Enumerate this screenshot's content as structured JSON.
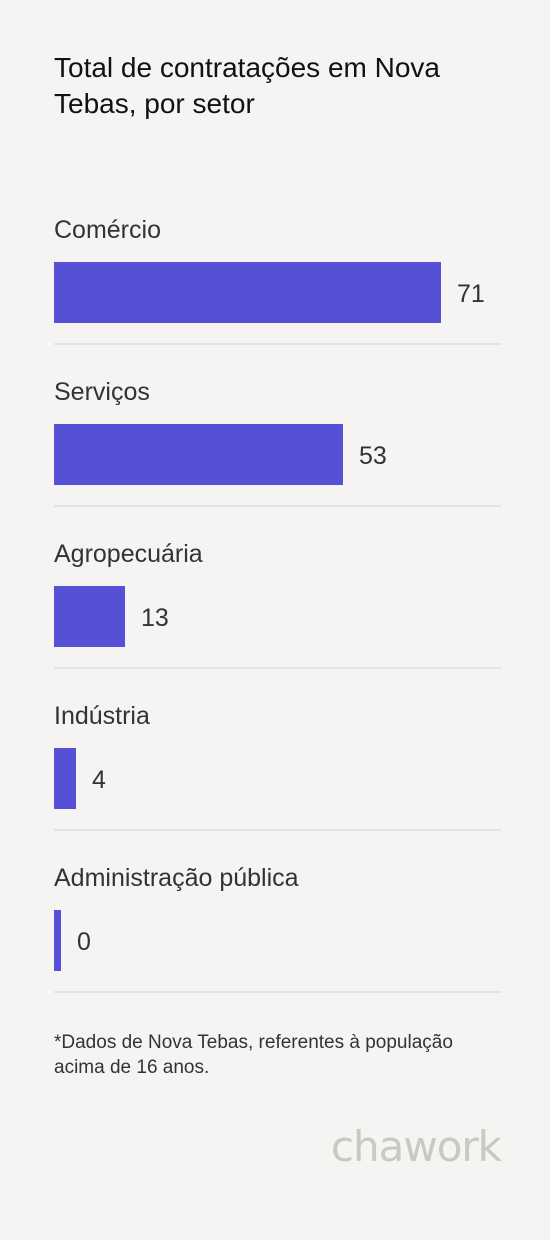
{
  "title": "Total de contratações em Nova Tebas, por setor",
  "chart_data": {
    "type": "bar",
    "orientation": "horizontal",
    "categories": [
      "Comércio",
      "Serviços",
      "Agropecuária",
      "Indústria",
      "Administração pública"
    ],
    "values": [
      71,
      53,
      13,
      4,
      0
    ],
    "title": "Total de contratações em Nova Tebas, por setor",
    "xlabel": "",
    "ylabel": "",
    "bar_color": "#5650d6",
    "xlim": [
      0,
      82
    ],
    "grid": false,
    "data_labels": true
  },
  "footnote": "*Dados de Nova Tebas, referentes à população acima de 16 anos.",
  "logo": "chawork",
  "colors": {
    "background": "#f5f4f2",
    "bar": "#5650d6",
    "divider": "#e4e3e1",
    "logo": "#c9c8c2"
  }
}
